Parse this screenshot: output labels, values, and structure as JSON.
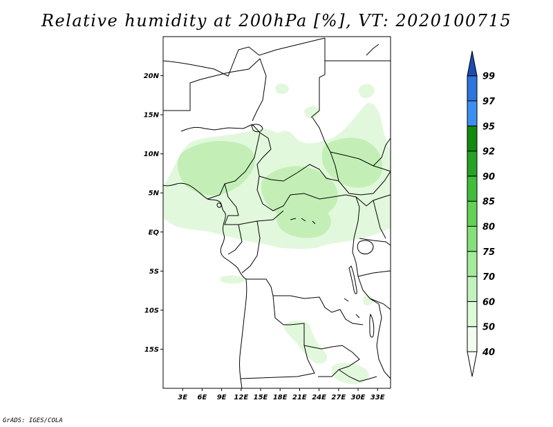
{
  "title": "Relative humidity at 200hPa [%], VT: 2020100715",
  "credit": "GrADS: IGES/COLA",
  "map": {
    "lon_range": [
      0,
      35
    ],
    "lat_range": [
      -20,
      25
    ],
    "lat_ticks": [
      "20N",
      "15N",
      "10N",
      "5N",
      "EQ",
      "5S",
      "10S",
      "15S"
    ],
    "lon_ticks": [
      "3E",
      "6E",
      "9E",
      "12E",
      "15E",
      "18E",
      "21E",
      "24E",
      "27E",
      "30E",
      "33E"
    ]
  },
  "colorbar": {
    "levels": [
      "40",
      "50",
      "60",
      "70",
      "75",
      "80",
      "85",
      "90",
      "92",
      "95",
      "97",
      "99"
    ],
    "colors": [
      "#f2fdf0",
      "#dcf9d8",
      "#c3f3bd",
      "#a4eb9b",
      "#86e07a",
      "#62d156",
      "#41bc3b",
      "#27a225",
      "#128a12",
      "#3d8ff0",
      "#2d74dc",
      "#2158c6"
    ],
    "under_color": "#ffffff",
    "over_color": "#1c4bb3"
  },
  "field_colors": {
    "light": "#e2f8dc",
    "medium": "#c3efb7"
  }
}
